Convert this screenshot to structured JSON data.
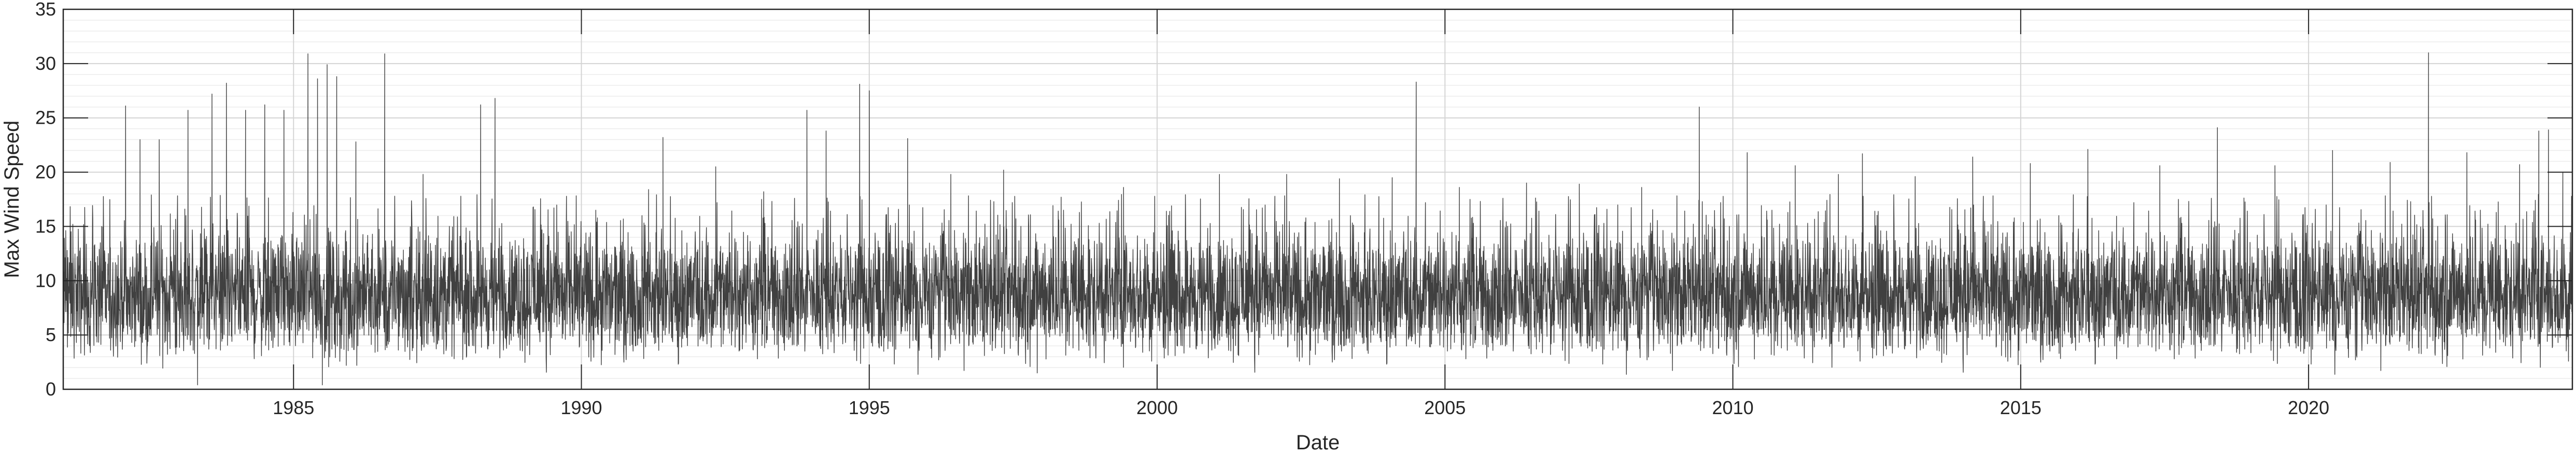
{
  "chart_data": {
    "type": "line",
    "title": "",
    "xlabel": "Date",
    "ylabel": "Max Wind Speed",
    "x_range": [
      "1981-01-01",
      "2024-07-31"
    ],
    "x_ticks": [
      "1985",
      "1990",
      "1995",
      "2000",
      "2005",
      "2010",
      "2015",
      "2020"
    ],
    "ylim": [
      0,
      35
    ],
    "y_ticks": [
      "0",
      "5",
      "10",
      "15",
      "20",
      "25",
      "30",
      "35"
    ],
    "y_minor_step": 1,
    "grid": true,
    "legend": "none",
    "colors": {
      "series": "#404040",
      "axis": "#262626",
      "major_grid": "#d4d4d4",
      "minor_grid": "#ececec"
    },
    "series": [
      {
        "values_note_free_points": true,
        "points": [
          [
            "1981-03",
            15.2
          ],
          [
            "1981-06",
            5.1
          ],
          [
            "1981-09",
            15.0
          ],
          [
            "1981-12",
            4.6
          ],
          [
            "1982-02",
            26.1
          ],
          [
            "1982-03",
            5.5
          ],
          [
            "1982-05",
            23.0
          ],
          [
            "1982-07",
            5.0
          ],
          [
            "1982-09",
            23.0
          ],
          [
            "1982-11",
            5.3
          ],
          [
            "1983-03",
            25.7
          ],
          [
            "1983-05",
            0.4
          ],
          [
            "1983-08",
            27.2
          ],
          [
            "1983-10",
            5.2
          ],
          [
            "1983-11",
            28.2
          ],
          [
            "1984-02",
            5.6
          ],
          [
            "1984-03",
            25.7
          ],
          [
            "1984-05",
            5.1
          ],
          [
            "1984-07",
            26.2
          ],
          [
            "1984-09",
            5.3
          ],
          [
            "1984-11",
            25.7
          ],
          [
            "1984-12",
            5.5
          ],
          [
            "1985-04",
            30.9
          ],
          [
            "1985-05",
            2.9
          ],
          [
            "1985-06",
            28.6
          ],
          [
            "1985-07",
            0.4
          ],
          [
            "1985-08",
            29.9
          ],
          [
            "1985-09",
            3.7
          ],
          [
            "1985-10",
            28.8
          ],
          [
            "1985-12",
            2.2
          ],
          [
            "1986-02",
            22.8
          ],
          [
            "1986-06",
            3.4
          ],
          [
            "1986-08",
            30.9
          ],
          [
            "1986-11",
            4.9
          ],
          [
            "1987-04",
            19.8
          ],
          [
            "1987-08",
            4.6
          ],
          [
            "1988-04",
            26.2
          ],
          [
            "1988-07",
            26.8
          ],
          [
            "1988-10",
            4.8
          ],
          [
            "1989-03",
            16.8
          ],
          [
            "1989-09",
            4.7
          ],
          [
            "1990-04",
            16.5
          ],
          [
            "1990-08",
            3.2
          ],
          [
            "1991-03",
            18.4
          ],
          [
            "1991-06",
            23.2
          ],
          [
            "1991-09",
            3.9
          ],
          [
            "1992-05",
            20.5
          ],
          [
            "1992-10",
            3.6
          ],
          [
            "1993-03",
            18.2
          ],
          [
            "1993-09",
            4.2
          ],
          [
            "1993-12",
            25.7
          ],
          [
            "1994-04",
            23.8
          ],
          [
            "1994-08",
            5.2
          ],
          [
            "1994-11",
            28.1
          ],
          [
            "1995-01",
            27.5
          ],
          [
            "1995-03",
            3.9
          ],
          [
            "1995-09",
            23.1
          ],
          [
            "1996-02",
            4.6
          ],
          [
            "1996-06",
            19.8
          ],
          [
            "1997-01",
            3.1
          ],
          [
            "1997-05",
            20.2
          ],
          [
            "1997-12",
            1.5
          ],
          [
            "1998-05",
            17.7
          ],
          [
            "1998-11",
            2.9
          ],
          [
            "1999-06",
            18.6
          ],
          [
            "1999-10",
            3.4
          ],
          [
            "2000-04",
            16.9
          ],
          [
            "2001-02",
            19.8
          ],
          [
            "2001-06",
            3.1
          ],
          [
            "2002-04",
            19.8
          ],
          [
            "2002-10",
            3.2
          ],
          [
            "2003-03",
            19.4
          ],
          [
            "2003-09",
            3.3
          ],
          [
            "2004-02",
            19.5
          ],
          [
            "2004-07",
            28.3
          ],
          [
            "2004-10",
            3.9
          ],
          [
            "2005-04",
            18.6
          ],
          [
            "2005-10",
            3.9
          ],
          [
            "2006-06",
            19.0
          ],
          [
            "2006-11",
            3.2
          ],
          [
            "2007-05",
            18.9
          ],
          [
            "2007-12",
            3.6
          ],
          [
            "2008-06",
            18.6
          ],
          [
            "2008-12",
            3.3
          ],
          [
            "2009-06",
            26.0
          ],
          [
            "2009-10",
            3.8
          ],
          [
            "2010-04",
            21.8
          ],
          [
            "2010-09",
            3.2
          ],
          [
            "2011-02",
            20.6
          ],
          [
            "2011-06",
            3.9
          ],
          [
            "2011-11",
            19.8
          ],
          [
            "2012-04",
            21.7
          ],
          [
            "2012-09",
            3.7
          ],
          [
            "2013-03",
            19.6
          ],
          [
            "2013-09",
            3.3
          ],
          [
            "2014-03",
            21.4
          ],
          [
            "2014-09",
            3.1
          ],
          [
            "2015-03",
            20.8
          ],
          [
            "2015-09",
            3.3
          ],
          [
            "2016-03",
            22.1
          ],
          [
            "2016-09",
            2.8
          ],
          [
            "2017-06",
            20.6
          ],
          [
            "2017-10",
            3.2
          ],
          [
            "2018-06",
            24.1
          ],
          [
            "2018-10",
            3.4
          ],
          [
            "2019-06",
            20.6
          ],
          [
            "2019-12",
            3.3
          ],
          [
            "2020-06",
            22.0
          ],
          [
            "2020-11",
            3.1
          ],
          [
            "2021-06",
            20.9
          ],
          [
            "2021-12",
            3.3
          ],
          [
            "2022-02",
            31.0
          ],
          [
            "2022-06",
            3.1
          ],
          [
            "2022-10",
            21.8
          ],
          [
            "2023-04",
            3.4
          ],
          [
            "2023-09",
            20.7
          ],
          [
            "2024-01",
            23.8
          ],
          [
            "2024-03",
            23.9
          ],
          [
            "2024-05",
            4.3
          ],
          [
            "2024-06",
            20.0
          ]
        ]
      }
    ]
  }
}
